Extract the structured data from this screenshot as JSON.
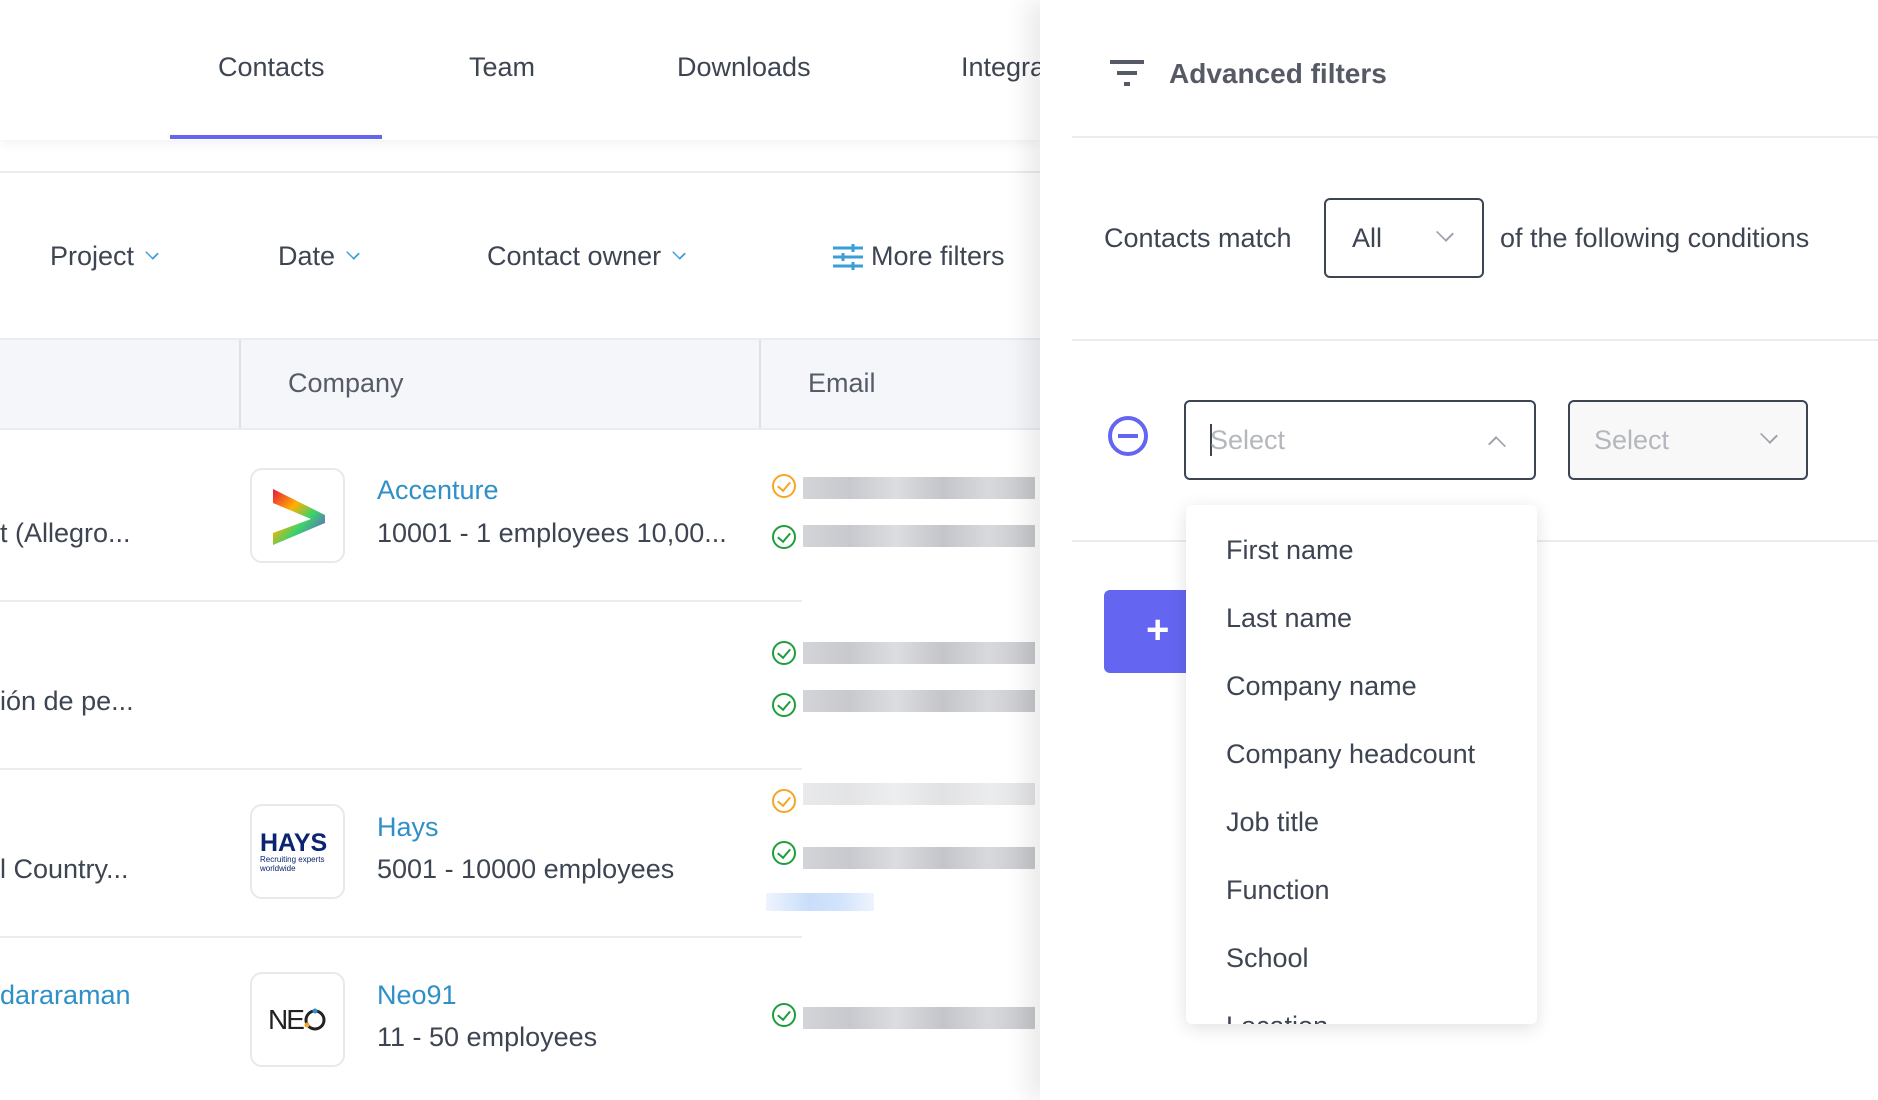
{
  "tabs": [
    "Contacts",
    "Team",
    "Downloads",
    "Integrations"
  ],
  "active_tab": "Contacts",
  "filters": {
    "project": "Project",
    "date": "Date",
    "owner": "Contact owner",
    "more": "More filters"
  },
  "table": {
    "headers": [
      "Company",
      "Email"
    ],
    "rows": [
      {
        "left": "t (Allegro...",
        "company": "Accenture",
        "size": "10001 - 1 employees 10,00...",
        "checks": [
          "orange",
          "green"
        ]
      },
      {
        "left": "ión de pe...",
        "company": "",
        "size": "",
        "checks": [
          "green",
          "green"
        ]
      },
      {
        "left": "l Country...",
        "company": "Hays",
        "size": "5001 - 10000 employees",
        "checks": [
          "orange",
          "green"
        ]
      },
      {
        "left": "dararaman",
        "company": "Neo91",
        "size": "11 - 50 employees",
        "checks": [
          "green"
        ]
      }
    ]
  },
  "logos": {
    "hays": "HAYS",
    "hays_tag": "Recruiting experts worldwide",
    "neo": "NE"
  },
  "panel": {
    "title": "Advanced filters",
    "match_prefix": "Contacts match",
    "match_value": "All",
    "match_suffix": "of the following conditions",
    "field_placeholder": "Select",
    "operator_placeholder": "Select",
    "add_label": "+",
    "options": [
      "First name",
      "Last name",
      "Company name",
      "Company headcount",
      "Job title",
      "Function",
      "School",
      "Location"
    ]
  },
  "colors": {
    "accent": "#6466f1",
    "link": "#2f90c8",
    "check_green": "#1e9e3a",
    "check_orange": "#f5a623"
  }
}
